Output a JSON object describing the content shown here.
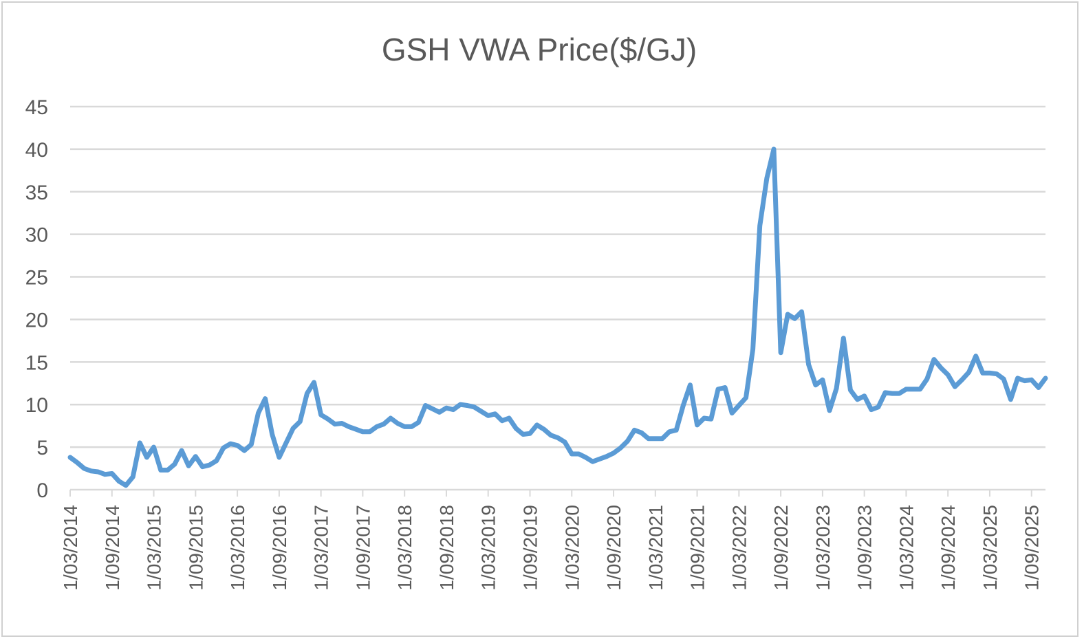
{
  "chart_data": {
    "type": "line",
    "title": "GSH VWA Price($/GJ)",
    "xlabel": "",
    "ylabel": "",
    "ylim": [
      0,
      45
    ],
    "yticks": [
      0,
      5,
      10,
      15,
      20,
      25,
      30,
      35,
      40,
      45
    ],
    "grid": true,
    "legend": "none",
    "color": "#5B9BD5",
    "x_tick_labels": [
      "1/03/2014",
      "1/09/2014",
      "1/03/2015",
      "1/09/2015",
      "1/03/2016",
      "1/09/2016",
      "1/03/2017",
      "1/09/2017",
      "1/03/2018",
      "1/09/2018",
      "1/03/2019",
      "1/09/2019",
      "1/03/2020",
      "1/09/2020",
      "1/03/2021",
      "1/09/2021",
      "1/03/2022",
      "1/09/2022",
      "1/03/2023",
      "1/09/2023",
      "1/03/2024",
      "1/09/2024",
      "1/03/2025",
      "1/09/2025"
    ],
    "series": [
      {
        "name": "GSH VWA Price($/GJ)",
        "start": "1/03/2014",
        "frequency": "monthly",
        "values": [
          3.8,
          3.2,
          2.5,
          2.2,
          2.1,
          1.8,
          1.9,
          1.0,
          0.5,
          1.5,
          5.5,
          3.8,
          5.0,
          2.3,
          2.3,
          3.0,
          4.6,
          2.8,
          3.9,
          2.7,
          2.9,
          3.4,
          4.9,
          5.4,
          5.2,
          4.6,
          5.3,
          9.0,
          10.7,
          6.5,
          3.8,
          5.5,
          7.2,
          8.0,
          11.3,
          12.6,
          8.8,
          8.3,
          7.7,
          7.8,
          7.4,
          7.1,
          6.8,
          6.8,
          7.4,
          7.7,
          8.4,
          7.8,
          7.4,
          7.4,
          7.9,
          9.9,
          9.5,
          9.1,
          9.6,
          9.4,
          10.0,
          9.9,
          9.7,
          9.2,
          8.7,
          8.9,
          8.1,
          8.4,
          7.2,
          6.5,
          6.6,
          7.6,
          7.1,
          6.4,
          6.1,
          5.6,
          4.2,
          4.2,
          3.8,
          3.3,
          3.6,
          3.9,
          4.3,
          4.9,
          5.7,
          7.0,
          6.7,
          6.0,
          6.0,
          6.0,
          6.8,
          7.0,
          9.9,
          12.3,
          7.6,
          8.4,
          8.3,
          11.8,
          12.0,
          9.0,
          9.9,
          10.8,
          16.5,
          31.0,
          36.6,
          40.0,
          16.1,
          20.6,
          20.1,
          20.9,
          14.7,
          12.3,
          12.9,
          9.3,
          11.9,
          17.8,
          11.7,
          10.6,
          11.0,
          9.4,
          9.7,
          11.4,
          11.3,
          11.3,
          11.8,
          11.8,
          11.8,
          13.0,
          15.3,
          14.3,
          13.5,
          12.1,
          12.9,
          13.8,
          15.7,
          13.7,
          13.7,
          13.6,
          13.0,
          10.6,
          13.1,
          12.8,
          12.9,
          12.0,
          13.1
        ]
      }
    ]
  }
}
